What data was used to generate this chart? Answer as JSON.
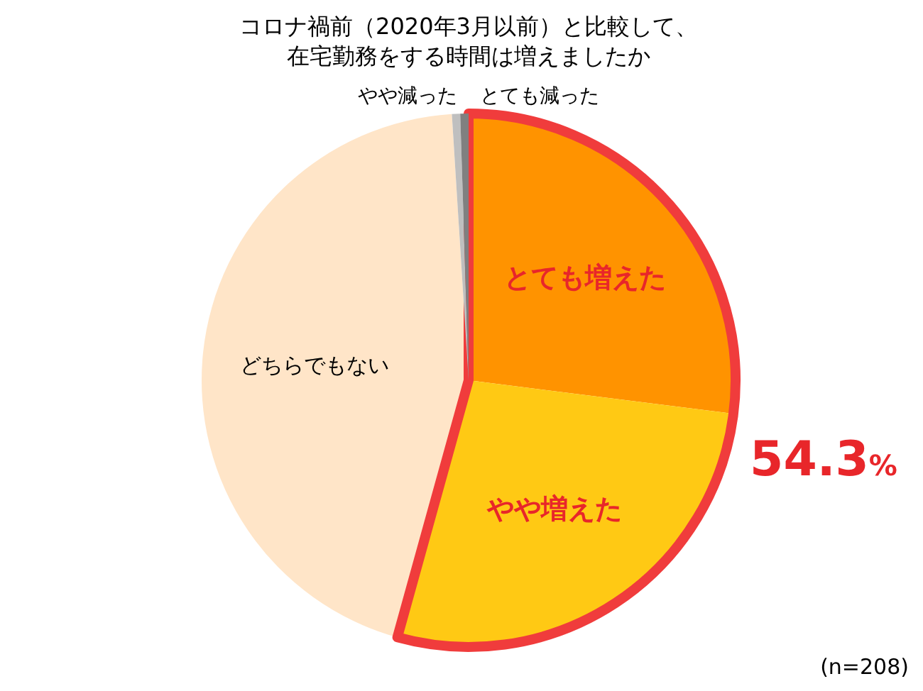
{
  "chart_data": {
    "type": "pie",
    "title": "コロナ禍前（2020年3月以前）と比較して、在宅勤務をする時間は増えましたか",
    "categories": [
      "とても増えた",
      "やや増えた",
      "どちらでもない",
      "やや減った",
      "とても減った"
    ],
    "values": [
      27.0,
      27.3,
      44.7,
      0.5,
      0.5
    ],
    "colors": [
      "#ff9300",
      "#ffc914",
      "#ffe5c8",
      "#bfbfbf",
      "#808080"
    ],
    "annotations": [
      "54.3%",
      "(n=208)"
    ],
    "legend": false
  }
}
